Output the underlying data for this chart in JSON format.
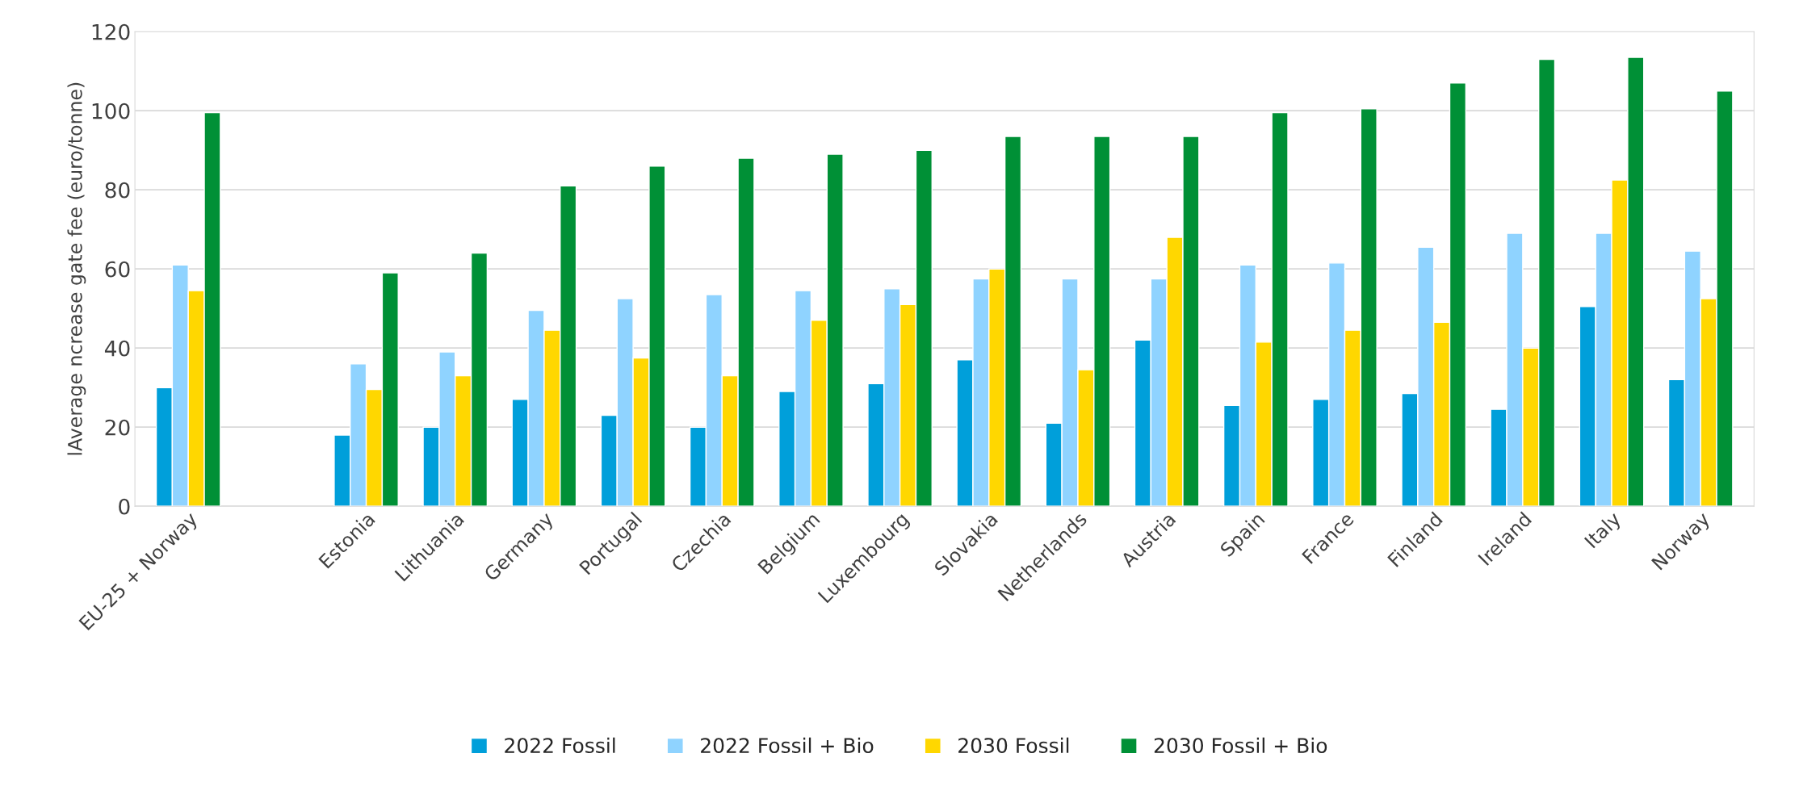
{
  "chart_data": {
    "type": "bar",
    "ylabel": "lAverage ncrease gate fee (euro/tonne)",
    "categories": [
      "EU-25 + Norway",
      null,
      "Estonia",
      "Lithuania",
      "Germany",
      "Portugal",
      "Czechia",
      "Belgium",
      "Luxembourg",
      "Slovakia",
      "Netherlands",
      "Austria",
      "Spain",
      "France",
      "Finland",
      "Ireland",
      "Italy",
      "Norway"
    ],
    "series": [
      {
        "name": "2022 Fossil",
        "color": "#009fda",
        "values": [
          30,
          null,
          18,
          20,
          27,
          23,
          20,
          29,
          31,
          37,
          21,
          42,
          25.5,
          27,
          28.5,
          24.5,
          50.5,
          32
        ]
      },
      {
        "name": "2022 Fossil + Bio",
        "color": "#8fd3ff",
        "values": [
          61,
          null,
          36,
          39,
          49.5,
          52.5,
          53.5,
          54.5,
          55,
          57.5,
          57.5,
          57.5,
          61,
          61.5,
          65.5,
          69,
          69,
          64.5
        ]
      },
      {
        "name": "2030 Fossil",
        "color": "#ffd700",
        "values": [
          54.5,
          null,
          29.5,
          33,
          44.5,
          37.5,
          33,
          47,
          51,
          60,
          34.5,
          68,
          41.5,
          44.5,
          46.5,
          40,
          82.5,
          52.5
        ]
      },
      {
        "name": "2030 Fossil + Bio",
        "color": "#009036",
        "values": [
          99.5,
          null,
          59,
          64,
          81,
          86,
          88,
          89,
          90,
          93.5,
          93.5,
          93.5,
          99.5,
          100.5,
          107,
          113,
          113.5,
          105
        ]
      }
    ],
    "ylim": [
      0,
      120
    ],
    "yticks": [
      0,
      20,
      40,
      60,
      80,
      100,
      120
    ],
    "grid": "y",
    "legend": "bottom"
  }
}
